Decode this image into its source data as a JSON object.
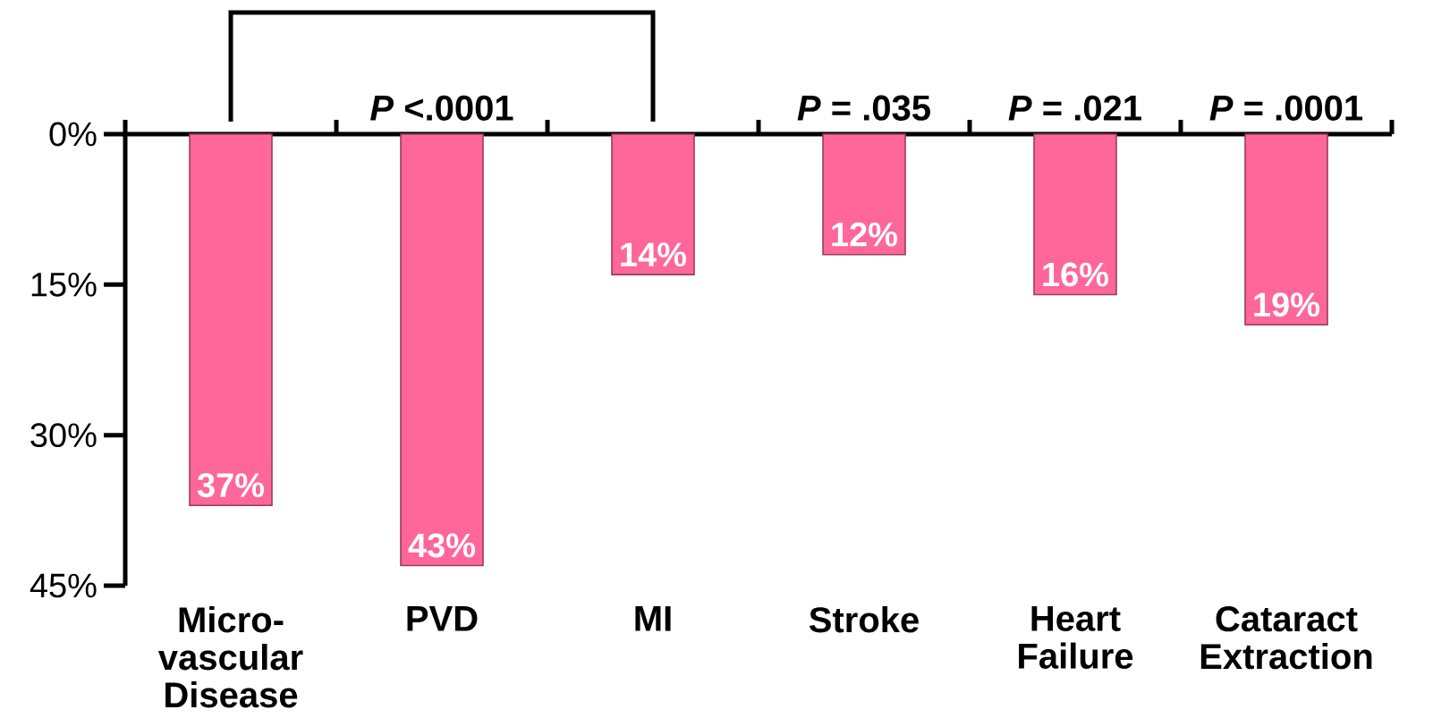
{
  "chart_data": {
    "type": "bar",
    "categories": [
      "Micro-vascular Disease",
      "PVD",
      "MI",
      "Stroke",
      "Heart Failure",
      "Cataract Extraction"
    ],
    "values": [
      37,
      43,
      14,
      12,
      16,
      19
    ],
    "value_labels": [
      "37%",
      "43%",
      "14%",
      "12%",
      "16%",
      "19%"
    ],
    "color": "#ff6699",
    "ylim": [
      45,
      0
    ],
    "yticks": [
      {
        "value": 0,
        "label": "0%"
      },
      {
        "value": 15,
        "label": "15%"
      },
      {
        "value": 30,
        "label": "30%"
      },
      {
        "value": 45,
        "label": "45%"
      }
    ],
    "grid": false,
    "annotations": [
      {
        "text": "*P* <.0001",
        "x": "PVD",
        "y": 0
      },
      {
        "text": "*P* = .035",
        "x": "Stroke",
        "y": 0
      },
      {
        "text": "*P* = .021",
        "x": "Heart Failure",
        "y": 0
      },
      {
        "text": "*P* = .0001",
        "x": "Cataract Extraction",
        "y": 0
      }
    ]
  }
}
